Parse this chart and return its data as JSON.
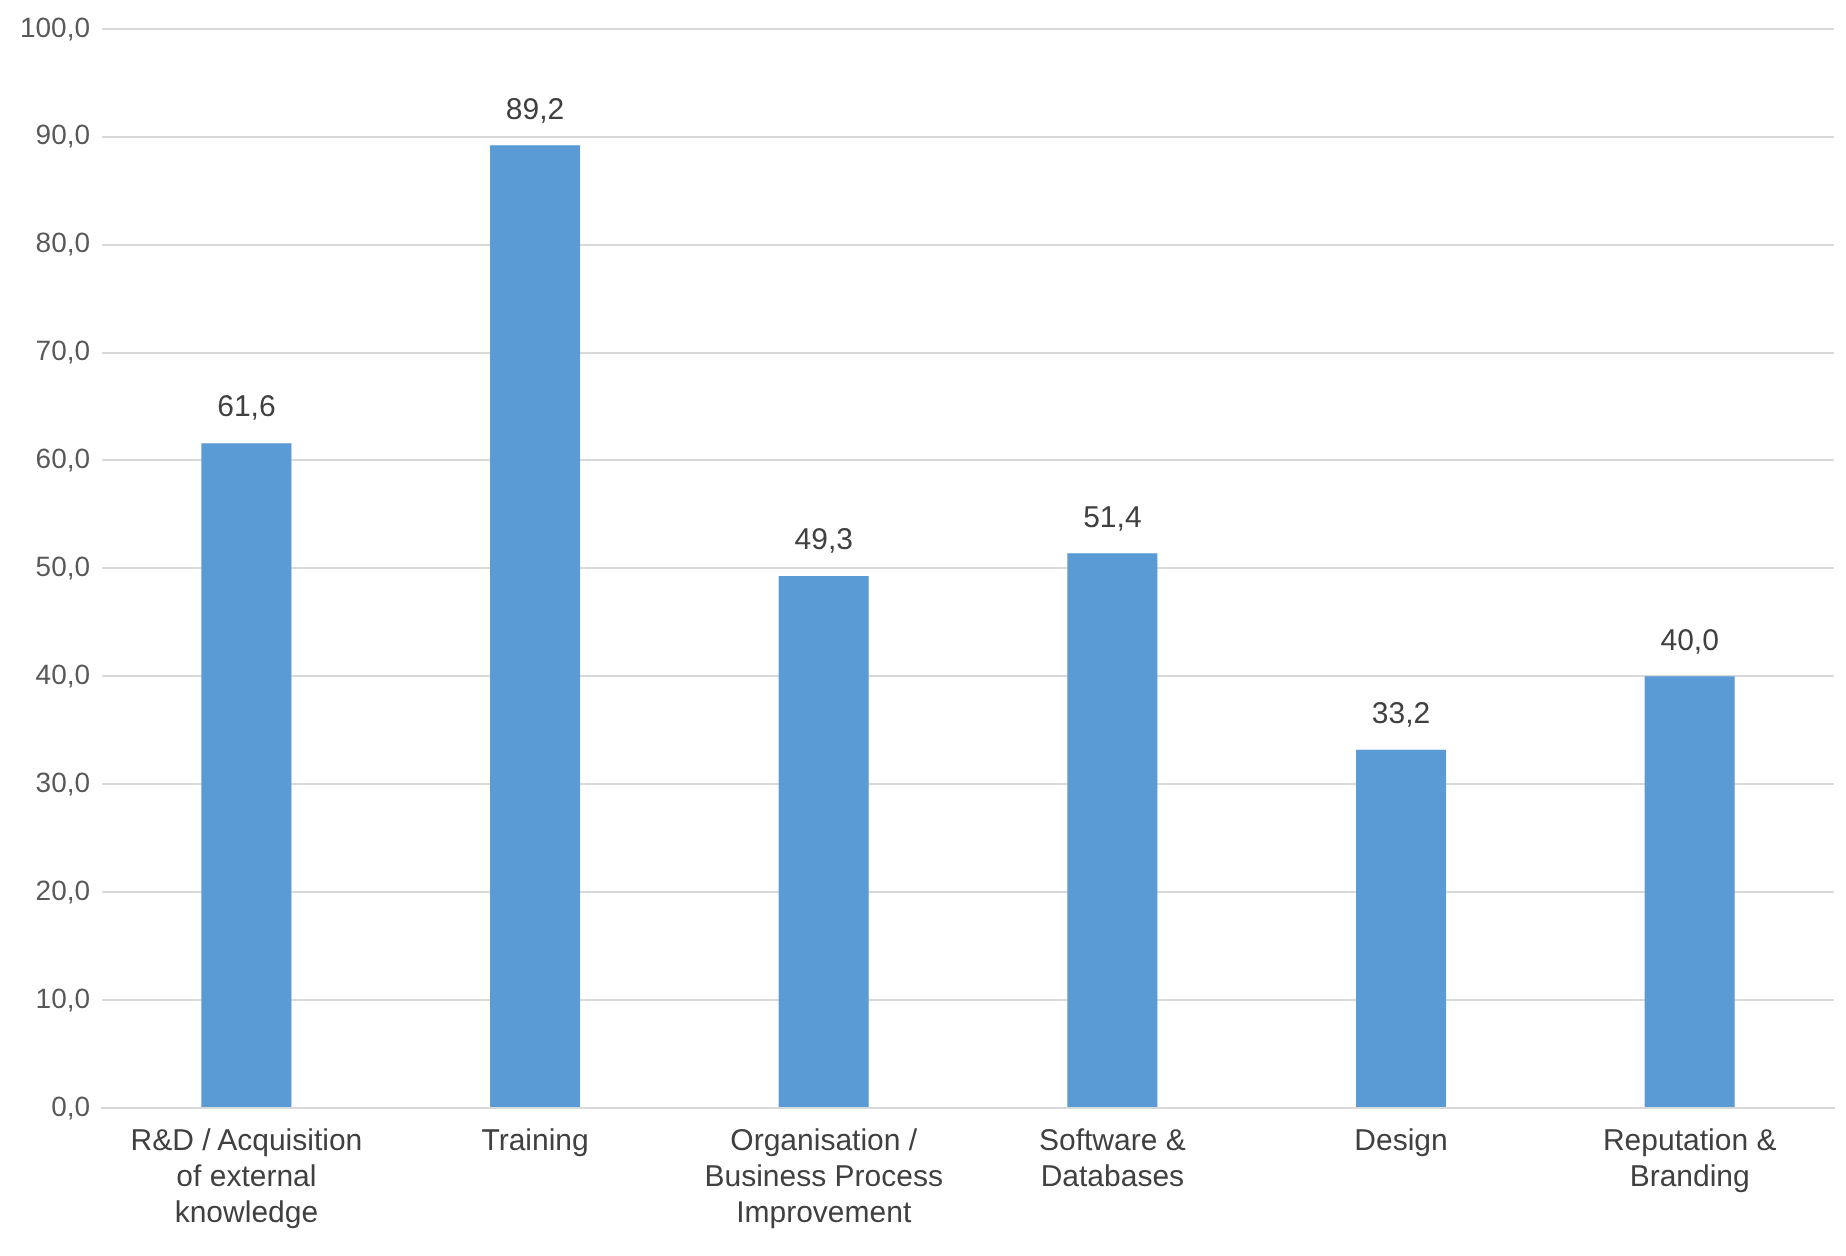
{
  "chart_data": {
    "type": "bar",
    "categories": [
      "R&D / Acquisition of external knowledge",
      "Training",
      "Organisation / Business Process Improvement",
      "Software & Databases",
      "Design",
      "Reputation & Branding"
    ],
    "values": [
      61.6,
      89.2,
      49.3,
      51.4,
      33.2,
      40.0
    ],
    "value_labels": [
      "61,6",
      "89,2",
      "49,3",
      "51,4",
      "33,2",
      "40,0"
    ],
    "color": "#5b9bd5",
    "ylim": [
      0,
      100
    ],
    "yticks": [
      {
        "value": 0,
        "label": "0,0"
      },
      {
        "value": 10,
        "label": "10,0"
      },
      {
        "value": 20,
        "label": "20,0"
      },
      {
        "value": 30,
        "label": "30,0"
      },
      {
        "value": 40,
        "label": "40,0"
      },
      {
        "value": 50,
        "label": "50,0"
      },
      {
        "value": 60,
        "label": "60,0"
      },
      {
        "value": 70,
        "label": "70,0"
      },
      {
        "value": 80,
        "label": "80,0"
      },
      {
        "value": 90,
        "label": "90,0"
      },
      {
        "value": 100,
        "label": "100,0"
      }
    ],
    "grid": "y",
    "legend": false
  }
}
